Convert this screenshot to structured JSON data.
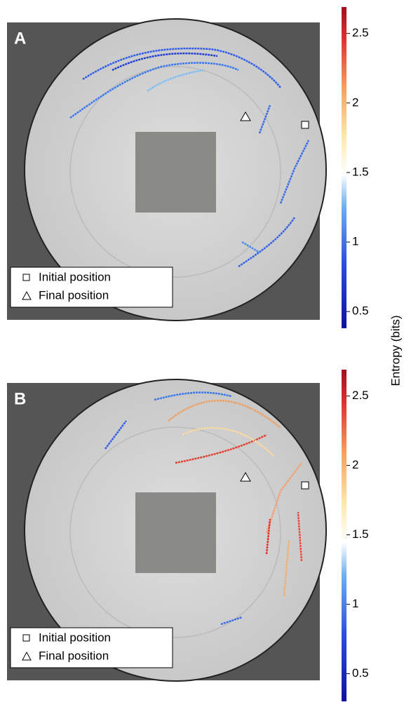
{
  "panels": [
    {
      "label": "A",
      "legend": [
        "Initial position",
        "Final position"
      ],
      "colorbar": {
        "lim": [
          0.38,
          2.69
        ],
        "ticks": [
          0.5,
          1,
          1.5,
          2,
          2.5
        ]
      }
    },
    {
      "label": "B",
      "legend": [
        "Initial position",
        "Final position"
      ],
      "colorbar": {
        "lim": [
          0.3,
          2.69
        ],
        "ticks": [
          0.5,
          1,
          1.5,
          2,
          2.5
        ]
      }
    }
  ],
  "colorbar_label": "Entropy (bits)"
}
